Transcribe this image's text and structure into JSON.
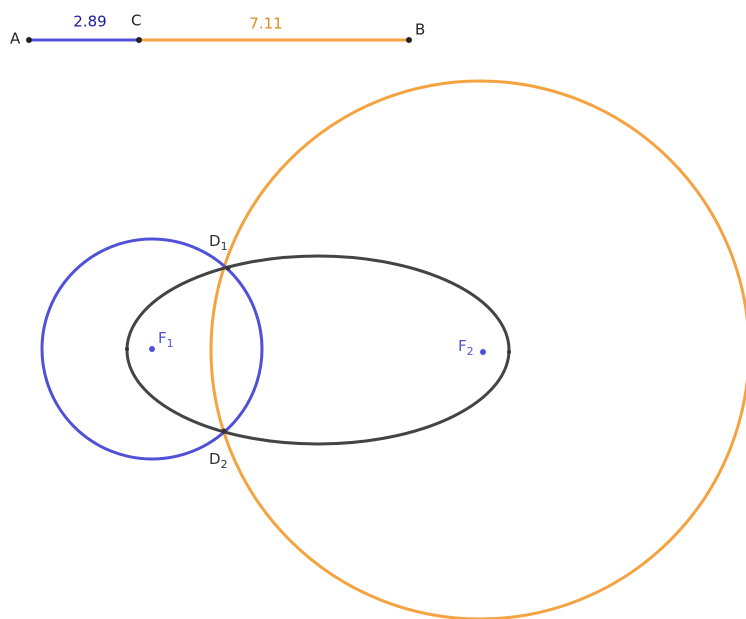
{
  "segments": [
    {
      "from": "A",
      "to": "C",
      "length_label": "2.89"
    },
    {
      "from": "C",
      "to": "B",
      "length_label": "7.11"
    }
  ],
  "points": [
    {
      "name": "A"
    },
    {
      "name": "C"
    },
    {
      "name": "B"
    },
    {
      "name": "D",
      "sub": "1"
    },
    {
      "name": "D",
      "sub": "2"
    },
    {
      "name": "F",
      "sub": "1"
    },
    {
      "name": "F",
      "sub": "2"
    }
  ]
}
